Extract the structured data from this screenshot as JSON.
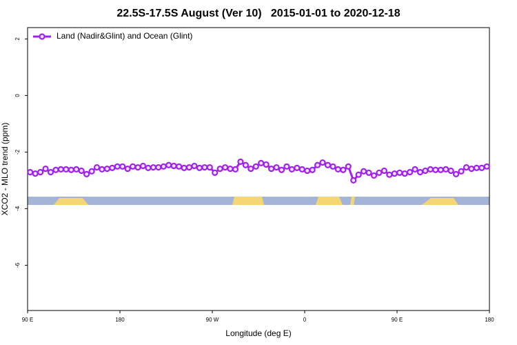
{
  "chart_data": {
    "type": "line",
    "title": "22.5S-17.5S August (Ver 10)   2015-01-01 to 2020-12-18",
    "xlabel": "Longitude (deg E)",
    "ylabel": "XCO2 - MLO trend (ppm)",
    "xlim": [
      90,
      540
    ],
    "ylim": [
      -7.6,
      2.4
    ],
    "xticks": [
      {
        "value": 90,
        "label": "90 E"
      },
      180,
      {
        "value": 270,
        "label": "90 W"
      },
      {
        "value": 360,
        "label": "0"
      },
      {
        "value": 450,
        "label": "90 E"
      },
      {
        "value": 540,
        "label": "180"
      }
    ],
    "yticks": [
      2,
      0,
      -2,
      -4,
      -6
    ],
    "legend_position": "top-left",
    "x": [
      92.5,
      97.5,
      102.5,
      107.5,
      112.5,
      117.5,
      122.5,
      127.5,
      132.5,
      137.5,
      142.5,
      147.5,
      152.5,
      157.5,
      162.5,
      167.5,
      172.5,
      177.5,
      182.5,
      187.5,
      192.5,
      197.5,
      202.5,
      207.5,
      212.5,
      217.5,
      222.5,
      227.5,
      232.5,
      237.5,
      242.5,
      247.5,
      252.5,
      257.5,
      262.5,
      267.5,
      272.5,
      277.5,
      282.5,
      287.5,
      292.5,
      297.5,
      302.5,
      307.5,
      312.5,
      317.5,
      322.5,
      327.5,
      332.5,
      337.5,
      342.5,
      347.5,
      352.5,
      357.5,
      362.5,
      367.5,
      372.5,
      377.5,
      382.5,
      387.5,
      392.5,
      397.5,
      402.5,
      407.5,
      412.5,
      417.5,
      422.5,
      427.5,
      432.5,
      437.5,
      442.5,
      447.5,
      452.5,
      457.5,
      462.5,
      467.5,
      472.5,
      477.5,
      482.5,
      487.5,
      492.5,
      497.5,
      502.5,
      507.5,
      512.5,
      517.5,
      522.5,
      527.5,
      532.5,
      537.5
    ],
    "series": [
      {
        "name": "Land (Nadir&Glint) and Ocean (Glint)",
        "color": "#a020f0",
        "values": [
          -2.71,
          -2.76,
          -2.71,
          -2.59,
          -2.71,
          -2.63,
          -2.61,
          -2.61,
          -2.63,
          -2.61,
          -2.66,
          -2.78,
          -2.68,
          -2.54,
          -2.61,
          -2.59,
          -2.56,
          -2.51,
          -2.51,
          -2.59,
          -2.51,
          -2.54,
          -2.49,
          -2.56,
          -2.54,
          -2.54,
          -2.51,
          -2.46,
          -2.49,
          -2.51,
          -2.56,
          -2.54,
          -2.49,
          -2.56,
          -2.54,
          -2.54,
          -2.73,
          -2.59,
          -2.54,
          -2.59,
          -2.61,
          -2.34,
          -2.46,
          -2.59,
          -2.51,
          -2.39,
          -2.44,
          -2.59,
          -2.54,
          -2.63,
          -2.51,
          -2.61,
          -2.56,
          -2.61,
          -2.66,
          -2.63,
          -2.46,
          -2.37,
          -2.46,
          -2.51,
          -2.61,
          -2.63,
          -2.51,
          -3.0,
          -2.8,
          -2.68,
          -2.73,
          -2.83,
          -2.73,
          -2.66,
          -2.8,
          -2.76,
          -2.73,
          -2.76,
          -2.71,
          -2.61,
          -2.71,
          -2.66,
          -2.61,
          -2.63,
          -2.63,
          -2.61,
          -2.66,
          -2.78,
          -2.68,
          -2.54,
          -2.59,
          -2.56,
          -2.56,
          -2.51
        ]
      }
    ]
  }
}
